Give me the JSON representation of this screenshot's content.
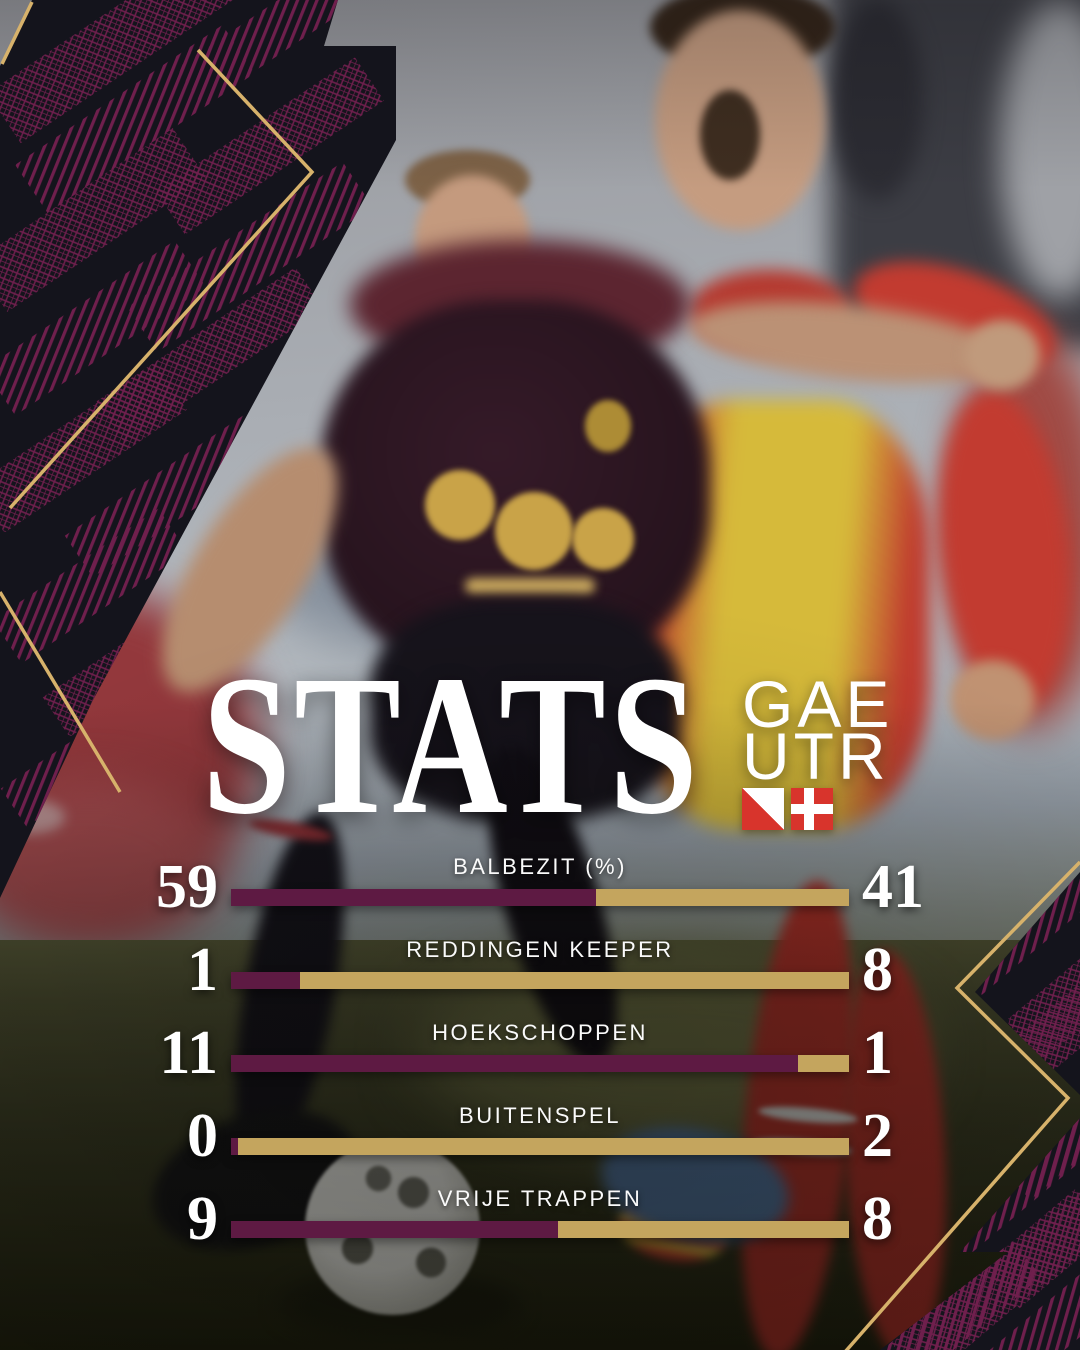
{
  "title": "STATS",
  "teams": {
    "home": "GAE",
    "away": "UTR"
  },
  "flag_icons": {
    "home": "diagonal-white-red-flag",
    "away": "red-white-cross-flag"
  },
  "colors": {
    "flag_red": "#d8342c",
    "bar_left_purple": "#5e1a43",
    "bar_right_gold": "#c4a55e",
    "accent_gold_line": "#d7b26b",
    "pattern_maroon": "#6f1f4d",
    "deco_dark": "#14141c",
    "text": "#ffffff"
  },
  "chart_data": {
    "type": "bar",
    "orientation": "horizontal-head-to-head",
    "title": "STATS",
    "categories": [
      "BALBEZIT (%)",
      "REDDINGEN KEEPER",
      "HOEKSCHOPPEN",
      "BUITENSPEL",
      "VRIJE TRAPPEN"
    ],
    "series": [
      {
        "name": "left-purple",
        "color": "#5e1a43",
        "values": [
          59,
          1,
          11,
          0,
          9
        ]
      },
      {
        "name": "right-gold",
        "color": "#c4a55e",
        "values": [
          41,
          8,
          1,
          2,
          8
        ]
      }
    ],
    "legend_position": "none",
    "grid": false
  }
}
